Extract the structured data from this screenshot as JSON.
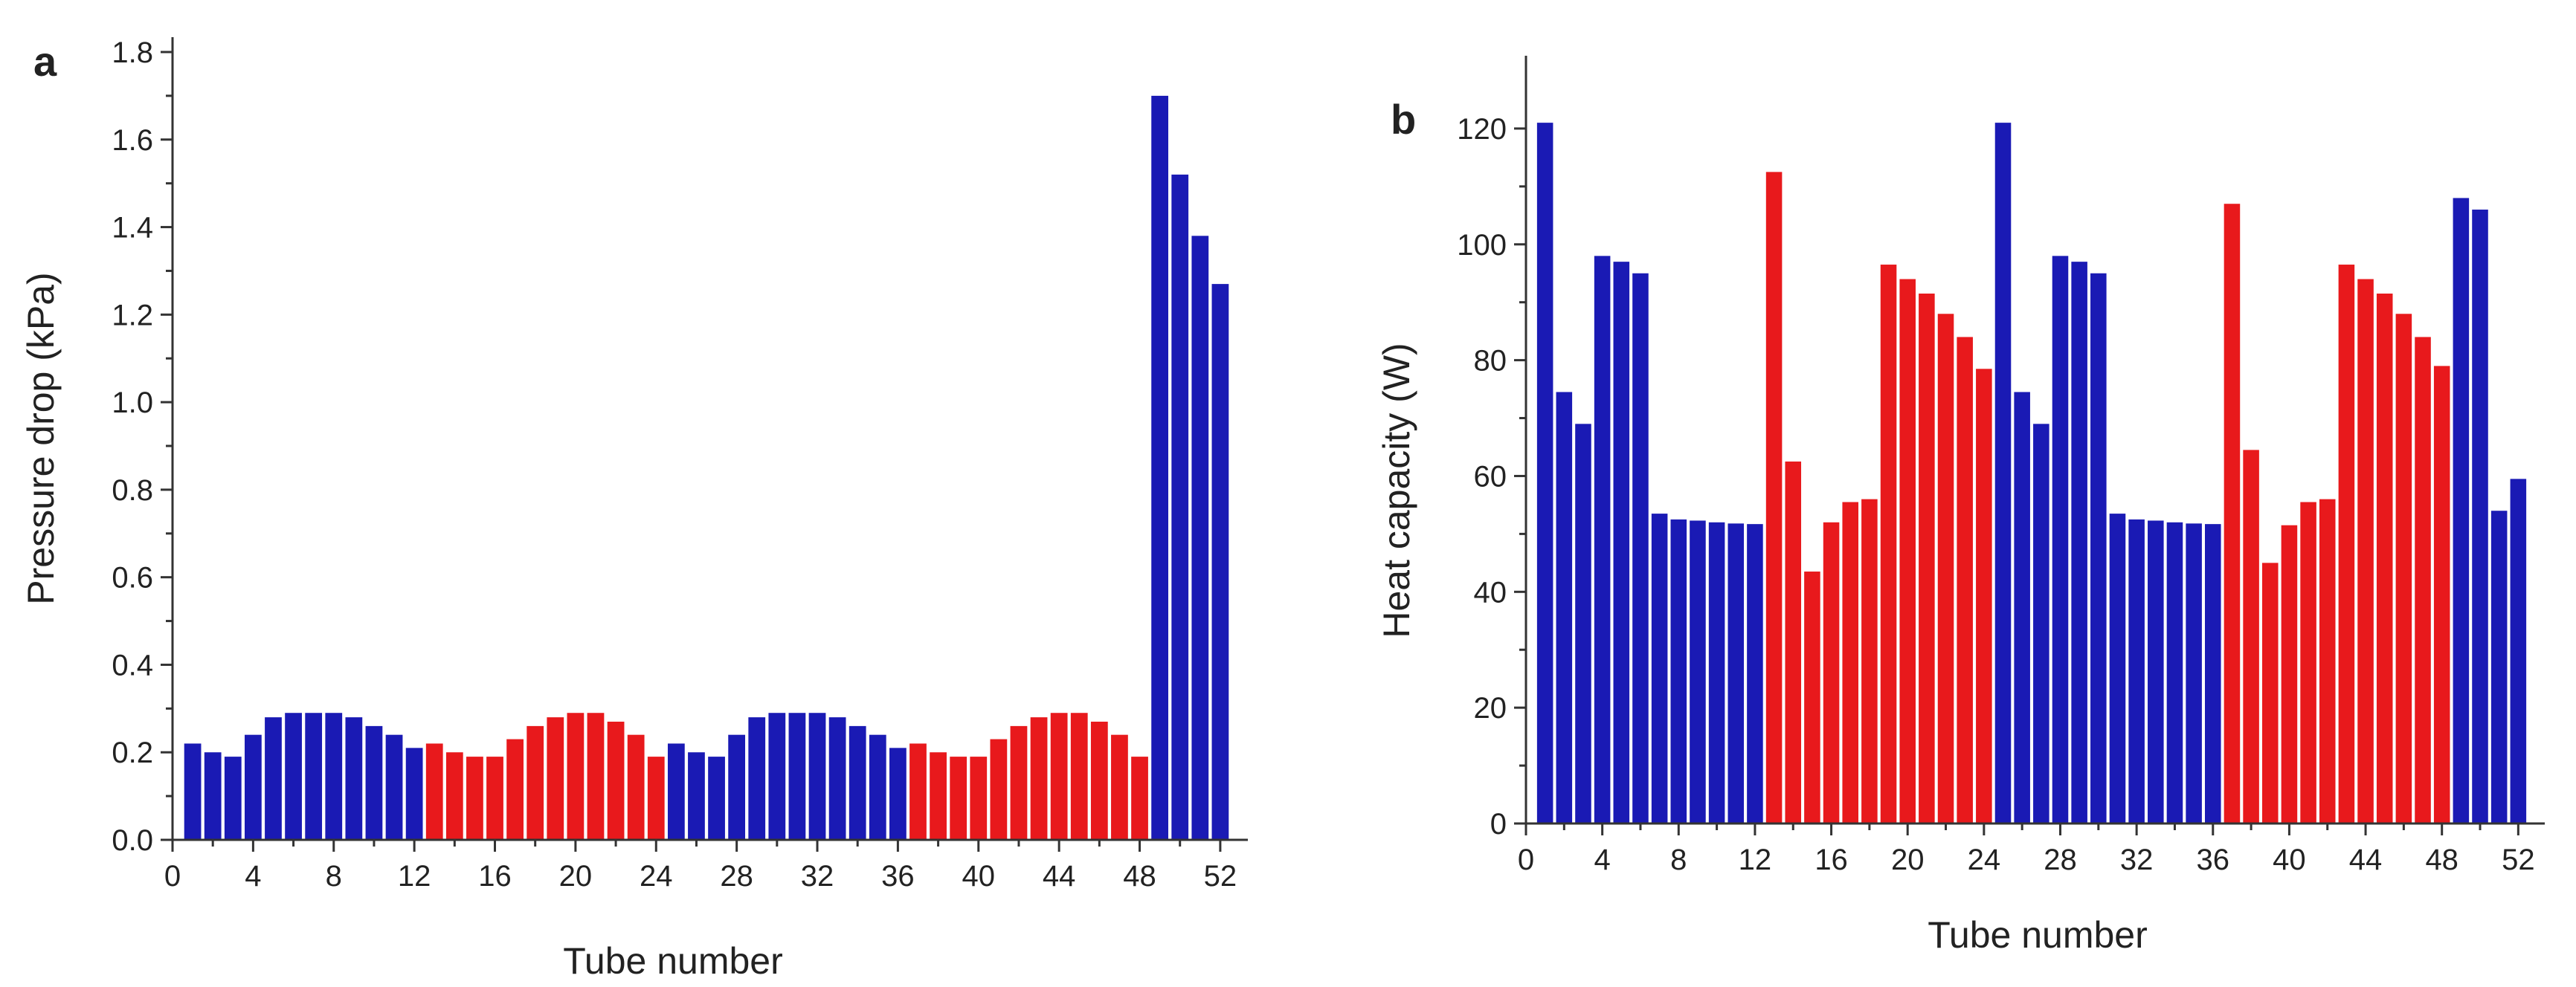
{
  "colors": {
    "blue": "#1a1ab4",
    "red": "#e8191c",
    "axis": "#333333"
  },
  "chart_data": [
    {
      "panel_label": "a",
      "type": "bar",
      "xlabel": "Tube number",
      "ylabel": "Pressure drop (kPa)",
      "xlim": [
        0,
        53
      ],
      "ylim": [
        0,
        1.8
      ],
      "xticks": [
        0,
        4,
        8,
        12,
        16,
        20,
        24,
        28,
        32,
        36,
        40,
        44,
        48,
        52
      ],
      "xtick_labels": [
        "0",
        "4",
        "8",
        "12",
        "16",
        "20",
        "24",
        "28",
        "32",
        "36",
        "40",
        "44",
        "48",
        "52"
      ],
      "yticks": [
        0,
        0.2,
        0.4,
        0.6,
        0.8,
        1.0,
        1.2,
        1.4,
        1.6,
        1.8
      ],
      "ytick_labels": [
        "0.0",
        "0.2",
        "0.4",
        "0.6",
        "0.8",
        "1.0",
        "1.2",
        "1.4",
        "1.6",
        "1.8"
      ],
      "tubes": [
        1,
        2,
        3,
        4,
        5,
        6,
        7,
        8,
        9,
        10,
        11,
        12,
        13,
        14,
        15,
        16,
        17,
        18,
        19,
        20,
        21,
        22,
        23,
        24,
        25,
        26,
        27,
        28,
        29,
        30,
        31,
        32,
        33,
        34,
        35,
        36,
        37,
        38,
        39,
        40,
        41,
        42,
        43,
        44,
        45,
        46,
        47,
        48,
        49,
        50,
        51,
        52
      ],
      "values": [
        0.22,
        0.2,
        0.19,
        0.24,
        0.28,
        0.29,
        0.29,
        0.29,
        0.28,
        0.26,
        0.24,
        0.21,
        0.22,
        0.2,
        0.19,
        0.19,
        0.23,
        0.26,
        0.28,
        0.29,
        0.29,
        0.27,
        0.24,
        0.19,
        0.22,
        0.2,
        0.19,
        0.24,
        0.28,
        0.29,
        0.29,
        0.29,
        0.28,
        0.26,
        0.24,
        0.21,
        0.22,
        0.2,
        0.19,
        0.19,
        0.23,
        0.26,
        0.28,
        0.29,
        0.29,
        0.27,
        0.24,
        0.19,
        1.7,
        1.52,
        1.38,
        1.27
      ],
      "series_colors": [
        "blue",
        "blue",
        "blue",
        "blue",
        "blue",
        "blue",
        "blue",
        "blue",
        "blue",
        "blue",
        "blue",
        "blue",
        "red",
        "red",
        "red",
        "red",
        "red",
        "red",
        "red",
        "red",
        "red",
        "red",
        "red",
        "red",
        "blue",
        "blue",
        "blue",
        "blue",
        "blue",
        "blue",
        "blue",
        "blue",
        "blue",
        "blue",
        "blue",
        "blue",
        "red",
        "red",
        "red",
        "red",
        "red",
        "red",
        "red",
        "red",
        "red",
        "red",
        "red",
        "red",
        "blue",
        "blue",
        "blue",
        "blue"
      ]
    },
    {
      "panel_label": "b",
      "type": "bar",
      "xlabel": "Tube number",
      "ylabel": "Heat capacity (W)",
      "xlim": [
        0,
        53
      ],
      "ylim": [
        0,
        130
      ],
      "xticks": [
        0,
        4,
        8,
        12,
        16,
        20,
        24,
        28,
        32,
        36,
        40,
        44,
        48,
        52
      ],
      "xtick_labels": [
        "0",
        "4",
        "8",
        "12",
        "16",
        "20",
        "24",
        "28",
        "32",
        "36",
        "40",
        "44",
        "48",
        "52"
      ],
      "yticks": [
        0,
        20,
        40,
        60,
        80,
        100,
        120
      ],
      "ytick_labels": [
        "0",
        "20",
        "40",
        "60",
        "80",
        "100",
        "120"
      ],
      "tubes": [
        1,
        2,
        3,
        4,
        5,
        6,
        7,
        8,
        9,
        10,
        11,
        12,
        13,
        14,
        15,
        16,
        17,
        18,
        19,
        20,
        21,
        22,
        23,
        24,
        25,
        26,
        27,
        28,
        29,
        30,
        31,
        32,
        33,
        34,
        35,
        36,
        37,
        38,
        39,
        40,
        41,
        42,
        43,
        44,
        45,
        46,
        47,
        48,
        49,
        50,
        51,
        52
      ],
      "values": [
        121,
        74.5,
        69,
        98,
        97,
        95,
        53.5,
        52.5,
        52.3,
        52,
        51.8,
        51.7,
        112.5,
        62.5,
        43.5,
        52,
        55.5,
        56,
        96.5,
        94,
        91.5,
        88,
        84,
        78.5,
        121,
        74.5,
        69,
        98,
        97,
        95,
        53.5,
        52.5,
        52.3,
        52,
        51.8,
        51.7,
        107,
        64.5,
        45,
        51.5,
        55.5,
        56,
        96.5,
        94,
        91.5,
        88,
        84,
        79,
        108,
        106,
        54,
        59.5
      ],
      "series_colors": [
        "blue",
        "blue",
        "blue",
        "blue",
        "blue",
        "blue",
        "blue",
        "blue",
        "blue",
        "blue",
        "blue",
        "blue",
        "red",
        "red",
        "red",
        "red",
        "red",
        "red",
        "red",
        "red",
        "red",
        "red",
        "red",
        "red",
        "blue",
        "blue",
        "blue",
        "blue",
        "blue",
        "blue",
        "blue",
        "blue",
        "blue",
        "blue",
        "blue",
        "blue",
        "red",
        "red",
        "red",
        "red",
        "red",
        "red",
        "red",
        "red",
        "red",
        "red",
        "red",
        "red",
        "blue",
        "blue",
        "blue",
        "blue"
      ]
    }
  ]
}
